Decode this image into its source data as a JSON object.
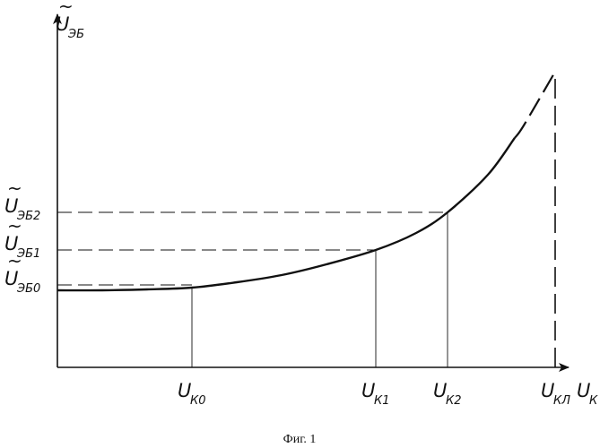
{
  "chart_data": {
    "type": "line",
    "caption": "Фиг. 1",
    "xlabel": {
      "base": "U",
      "sub": "К"
    },
    "ylabel": {
      "base": "U",
      "sub": "ЭБ",
      "tilde": "~"
    },
    "x_ticks": [
      {
        "key": "k0",
        "base": "U",
        "sub": "К0",
        "x": 1.5
      },
      {
        "key": "k1",
        "base": "U",
        "sub": "К1",
        "x": 3.55
      },
      {
        "key": "k2",
        "base": "U",
        "sub": "К2",
        "x": 4.35
      },
      {
        "key": "kl",
        "base": "U",
        "sub": "КЛ",
        "x": 5.55
      }
    ],
    "y_ticks": [
      {
        "key": "eb0",
        "base": "U",
        "sub": "ЭБ0",
        "tilde": "~",
        "y": 0.92
      },
      {
        "key": "eb1",
        "base": "U",
        "sub": "ЭБ1",
        "tilde": "~",
        "y": 1.31
      },
      {
        "key": "eb2",
        "base": "U",
        "sub": "ЭБ2",
        "tilde": "~",
        "y": 1.73
      }
    ],
    "series": [
      {
        "points": [
          [
            0,
            0.86
          ],
          [
            0.5,
            0.86
          ],
          [
            1.0,
            0.87
          ],
          [
            1.5,
            0.89
          ],
          [
            2.0,
            0.95
          ],
          [
            2.5,
            1.03
          ],
          [
            3.0,
            1.15
          ],
          [
            3.55,
            1.31
          ],
          [
            4.0,
            1.5
          ],
          [
            4.35,
            1.73
          ],
          [
            4.8,
            2.15
          ],
          [
            5.2,
            2.7
          ],
          [
            5.55,
            3.3
          ]
        ],
        "dashed_from_x": 5.1
      }
    ],
    "asymptote_x": 5.55,
    "xlim": [
      0,
      6.0
    ],
    "ylim": [
      0,
      3.6
    ],
    "grid": false
  }
}
